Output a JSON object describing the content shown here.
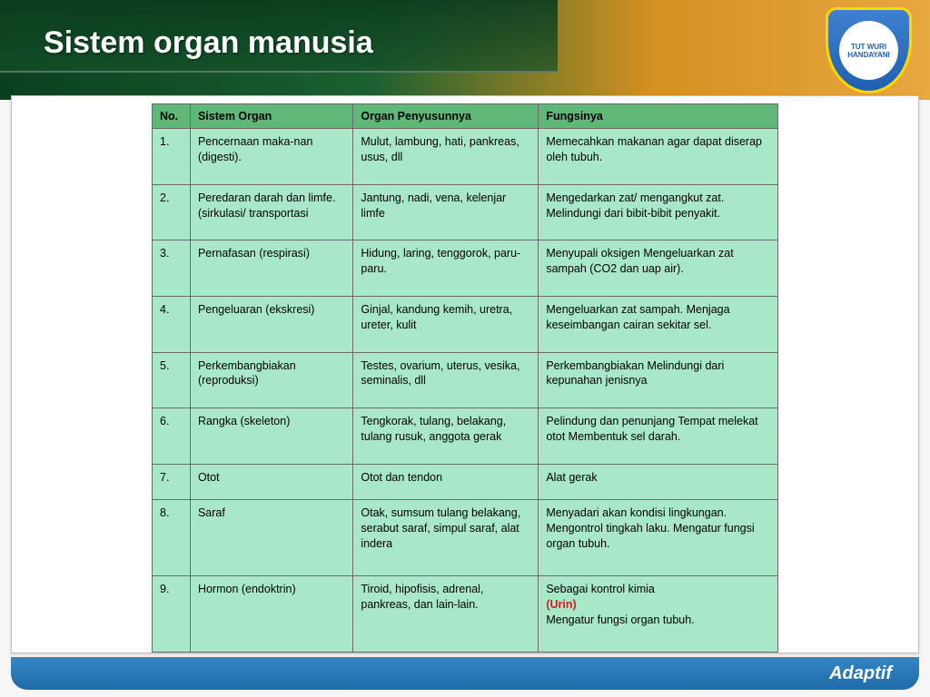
{
  "slide": {
    "title": "Sistem organ manusia",
    "footer": "Adaptif",
    "badge_text": "TUT WURI HANDAYANI"
  },
  "table": {
    "columns": [
      "No.",
      "Sistem Organ",
      "Organ Penyusunnya",
      "Fungsinya"
    ],
    "header_color": "#5fb878",
    "cell_color": "#a8e8c8",
    "border_color": "#6a6a6a",
    "rows": [
      {
        "no": "1.",
        "sistem": "Pencernaan maka-nan (digesti).",
        "organ": "Mulut, lambung, hati, pankreas, usus, dll",
        "fungsi": "Memecahkan makanan agar dapat diserap oleh tubuh."
      },
      {
        "no": "2.",
        "sistem": "Peredaran darah dan limfe. (sirkulasi/ transportasi",
        "organ": "Jantung, nadi, vena, kelenjar limfe",
        "fungsi": "Mengedarkan zat/ mengangkut zat. Melindungi dari bibit-bibit penyakit."
      },
      {
        "no": "3.",
        "sistem": "Pernafasan (respirasi)",
        "organ": "Hidung, laring, tenggorok, paru-paru.",
        "fungsi": "Menyupali oksigen Mengeluarkan zat sampah (CO2 dan uap air)."
      },
      {
        "no": "4.",
        "sistem": "Pengeluaran (ekskresi)",
        "organ": "Ginjal, kandung kemih, uretra, ureter, kulit",
        "fungsi": "Mengeluarkan zat sampah. Menjaga keseimbangan cairan sekitar sel."
      },
      {
        "no": "5.",
        "sistem": "Perkembangbiakan (reproduksi)",
        "organ": "Testes, ovarium, uterus, vesika, seminalis, dll",
        "fungsi": "Perkembangbiakan Melindungi dari kepunahan jenisnya"
      },
      {
        "no": "6.",
        "sistem": "Rangka (skeleton)",
        "organ": "Tengkorak, tulang, belakang, tulang rusuk, anggota gerak",
        "fungsi": "Pelindung dan penunjang Tempat melekat otot Membentuk sel darah."
      },
      {
        "no": "7.",
        "sistem": "Otot",
        "organ": "Otot dan tendon",
        "fungsi": "Alat gerak"
      },
      {
        "no": "8.",
        "sistem": "Saraf",
        "organ": "Otak, sumsum tulang belakang, serabut saraf, simpul saraf, alat indera",
        "fungsi": "Menyadari akan kondisi lingkungan. Mengontrol tingkah laku. Mengatur fungsi organ tubuh."
      },
      {
        "no": "9.",
        "sistem": "Hormon (endoktrin)",
        "organ": "Tiroid, hipofisis, adrenal, pankreas, dan lain-lain.",
        "fungsi_pre": "Sebagai kontrol kimia",
        "fungsi_highlight": "(Urin)",
        "fungsi_post": "Mengatur fungsi organ tubuh."
      }
    ]
  }
}
